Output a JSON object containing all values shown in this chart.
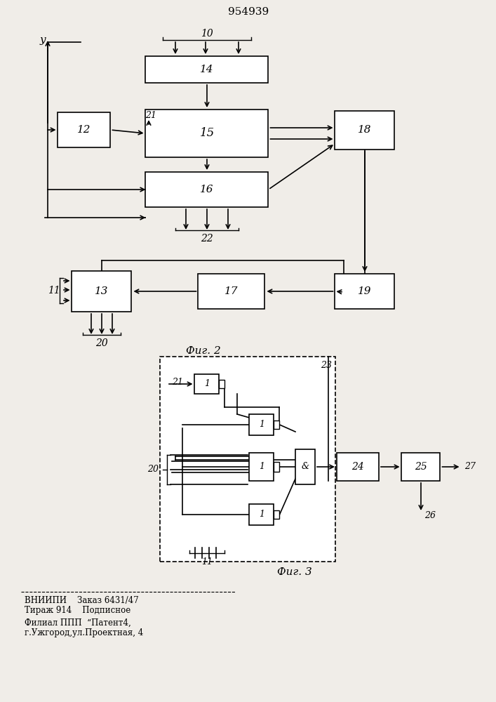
{
  "title": "954939",
  "fig2_label": "Фиг. 2",
  "fig3_label": "Фиг. 3",
  "bg_color": "#f0ede8",
  "footer_line1": "ВНИИПИ    Заказ 6431/47",
  "footer_line2": "Тираж 914    Подписное",
  "footer_line3": "Филиал ППП  “Патент4,",
  "footer_line4": "г.Ужгород,ул.Проектная, 4"
}
